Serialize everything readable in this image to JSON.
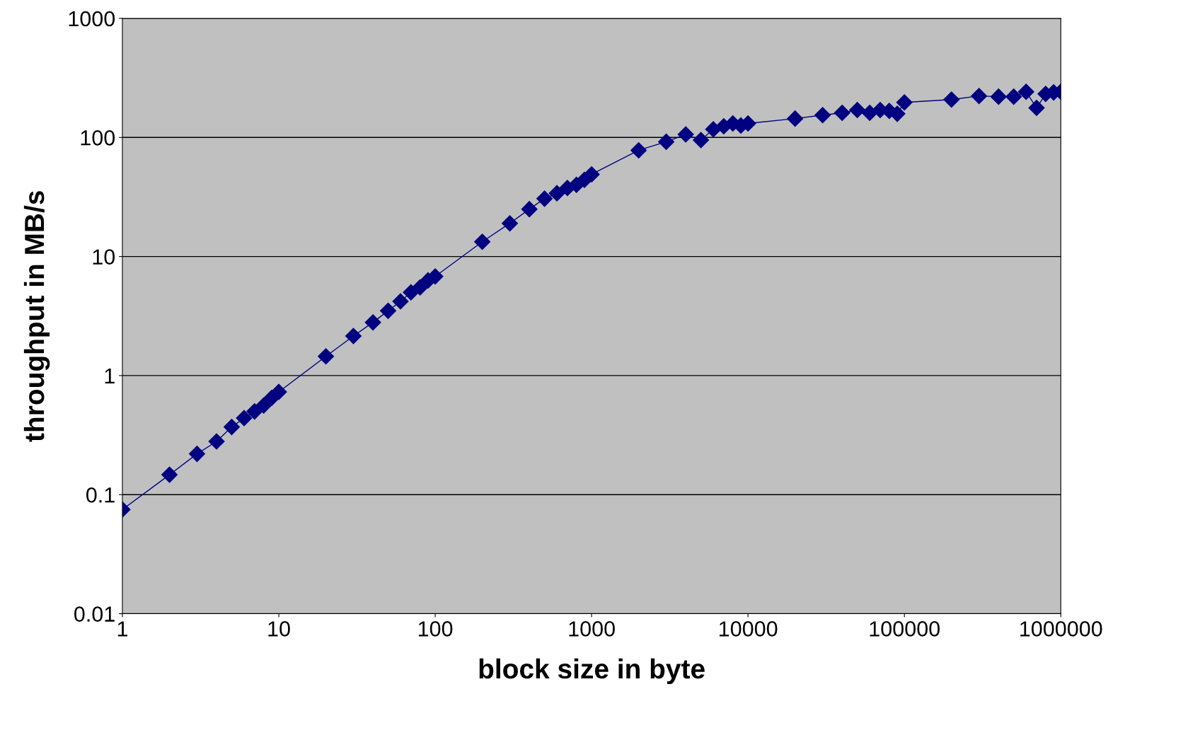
{
  "chart_data": {
    "type": "line",
    "xlabel": "block size in byte",
    "ylabel": "throughput in MB/s",
    "log": "xy",
    "grid": "y",
    "marker": "diamond",
    "line_style": "solid",
    "legend": false,
    "x": [
      1,
      2,
      3,
      4,
      5,
      6,
      7,
      8,
      9,
      10,
      20,
      30,
      40,
      50,
      60,
      70,
      80,
      90,
      100,
      200,
      300,
      400,
      500,
      600,
      700,
      800,
      900,
      1000,
      2000,
      3000,
      4000,
      5000,
      6000,
      7000,
      8000,
      9000,
      10000,
      20000,
      30000,
      40000,
      50000,
      60000,
      70000,
      80000,
      90000,
      100000,
      200000,
      300000,
      400000,
      500000,
      600000,
      700000,
      800000,
      900000,
      1000000
    ],
    "series": [
      {
        "color": "#000080",
        "values": [
          0.075,
          0.147,
          0.22,
          0.28,
          0.37,
          0.44,
          0.5,
          0.56,
          0.65,
          0.73,
          1.45,
          2.15,
          2.8,
          3.5,
          4.2,
          5.0,
          5.5,
          6.3,
          6.8,
          13.3,
          19,
          25,
          30.6,
          34,
          37.6,
          40,
          44,
          49,
          78,
          92,
          106,
          95,
          117,
          124,
          131,
          126,
          131,
          144,
          154,
          161,
          170,
          161,
          170,
          167,
          158,
          197,
          208,
          223,
          220,
          220,
          242,
          177,
          232,
          239,
          242
        ]
      }
    ],
    "xlim": [
      1,
      1000000
    ],
    "xticks": [
      1,
      10,
      100,
      1000,
      10000,
      100000,
      1000000
    ],
    "ylim": [
      0.01,
      1000
    ],
    "yticks": [
      0.01,
      0.1,
      1,
      10,
      100,
      1000
    ]
  }
}
